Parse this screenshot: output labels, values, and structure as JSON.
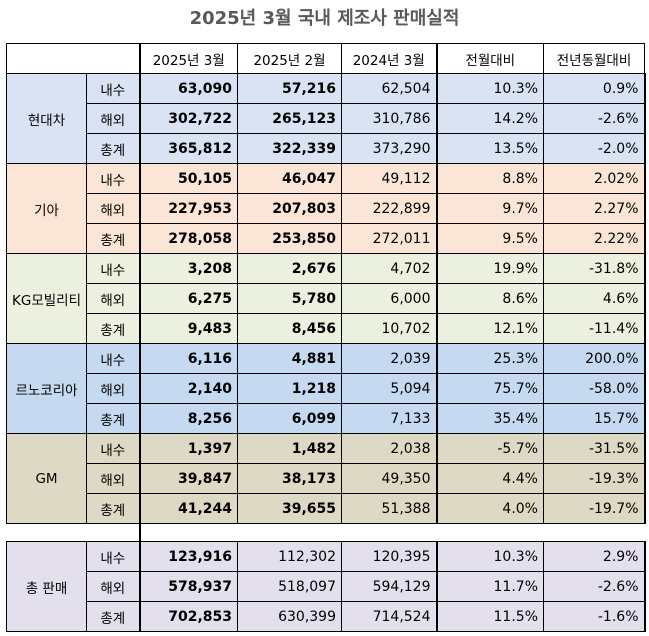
{
  "title": "2025년 3월 국내 제조사 판매실적",
  "headers": [
    "2025년 3월",
    "2025년 2월",
    "2024년 3월",
    "전월대비",
    "전년동월대비"
  ],
  "brands": [
    {
      "name": "현대차",
      "rows": [
        {
          "type": "내수",
          "mar25": "63,090",
          "feb25": "57,216",
          "mar24": "62,504",
          "mom": "10.3%",
          "yoy": "0.9%"
        },
        {
          "type": "해외",
          "mar25": "302,722",
          "feb25": "265,123",
          "mar24": "310,786",
          "mom": "14.2%",
          "yoy": "-2.6%"
        },
        {
          "type": "총계",
          "mar25": "365,812",
          "feb25": "322,339",
          "mar24": "373,290",
          "mom": "13.5%",
          "yoy": "-2.0%"
        }
      ]
    },
    {
      "name": "기아",
      "rows": [
        {
          "type": "내수",
          "mar25": "50,105",
          "feb25": "46,047",
          "mar24": "49,112",
          "mom": "8.8%",
          "yoy": "2.02%"
        },
        {
          "type": "해외",
          "mar25": "227,953",
          "feb25": "207,803",
          "mar24": "222,899",
          "mom": "9.7%",
          "yoy": "2.27%"
        },
        {
          "type": "총계",
          "mar25": "278,058",
          "feb25": "253,850",
          "mar24": "272,011",
          "mom": "9.5%",
          "yoy": "2.22%"
        }
      ]
    },
    {
      "name": "KG모빌리티",
      "rows": [
        {
          "type": "내수",
          "mar25": "3,208",
          "feb25": "2,676",
          "mar24": "4,702",
          "mom": "19.9%",
          "yoy": "-31.8%"
        },
        {
          "type": "해외",
          "mar25": "6,275",
          "feb25": "5,780",
          "mar24": "6,000",
          "mom": "8.6%",
          "yoy": "4.6%"
        },
        {
          "type": "총계",
          "mar25": "9,483",
          "feb25": "8,456",
          "mar24": "10,702",
          "mom": "12.1%",
          "yoy": "-11.4%"
        }
      ]
    },
    {
      "name": "르노코리아",
      "rows": [
        {
          "type": "내수",
          "mar25": "6,116",
          "feb25": "4,881",
          "mar24": "2,039",
          "mom": "25.3%",
          "yoy": "200.0%"
        },
        {
          "type": "해외",
          "mar25": "2,140",
          "feb25": "1,218",
          "mar24": "5,094",
          "mom": "75.7%",
          "yoy": "-58.0%"
        },
        {
          "type": "총계",
          "mar25": "8,256",
          "feb25": "6,099",
          "mar24": "7,133",
          "mom": "35.4%",
          "yoy": "15.7%"
        }
      ]
    },
    {
      "name": "GM",
      "rows": [
        {
          "type": "내수",
          "mar25": "1,397",
          "feb25": "1,482",
          "mar24": "2,038",
          "mom": "-5.7%",
          "yoy": "-31.5%"
        },
        {
          "type": "해외",
          "mar25": "39,847",
          "feb25": "38,173",
          "mar24": "49,350",
          "mom": "4.4%",
          "yoy": "-19.3%"
        },
        {
          "type": "총계",
          "mar25": "41,244",
          "feb25": "39,655",
          "mar24": "51,388",
          "mom": "4.0%",
          "yoy": "-19.7%"
        }
      ]
    }
  ],
  "total": {
    "name": "총 판매",
    "rows": [
      {
        "type": "내수",
        "mar25": "123,916",
        "feb25": "112,302",
        "mar24": "120,395",
        "mom": "10.3%",
        "yoy": "2.9%"
      },
      {
        "type": "해외",
        "mar25": "578,937",
        "feb25": "518,097",
        "mar24": "594,129",
        "mom": "11.7%",
        "yoy": "-2.6%"
      },
      {
        "type": "총계",
        "mar25": "702,853",
        "feb25": "630,399",
        "mar24": "714,524",
        "mom": "11.5%",
        "yoy": "-1.6%"
      }
    ]
  },
  "colors": {
    "hyundai": "#dae3f3",
    "kia": "#fbe5d6",
    "kg": "#ebf1de",
    "renault": "#c5d9f1",
    "gm": "#ddd9c4",
    "total": "#e4dfec"
  }
}
